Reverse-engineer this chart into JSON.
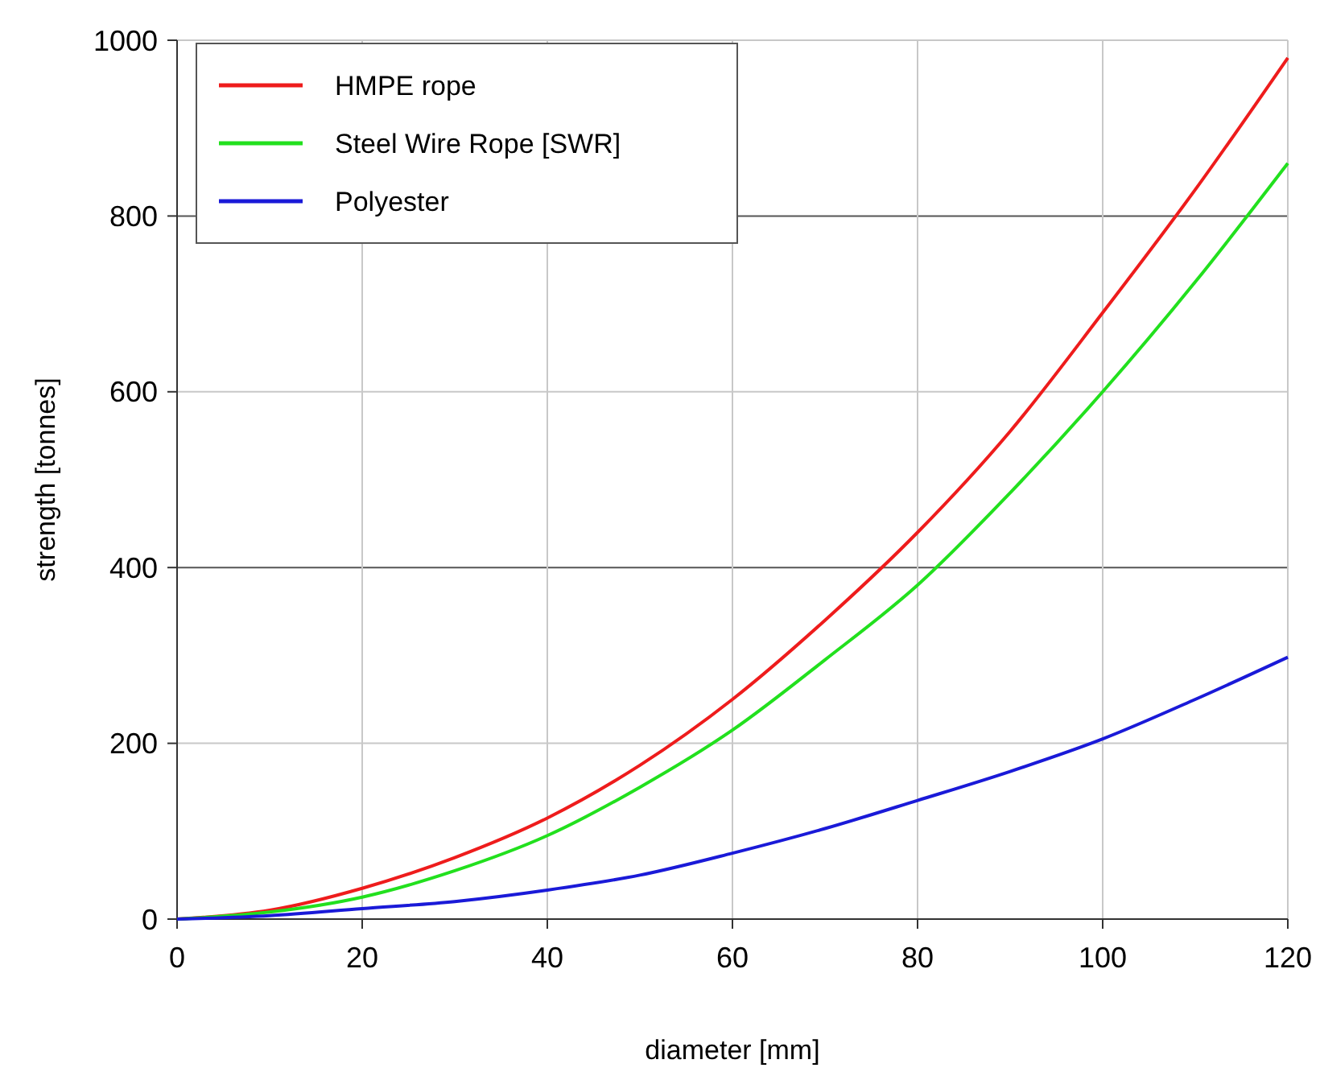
{
  "chart_data": {
    "type": "line",
    "xlabel": "diameter [mm]",
    "ylabel": "strength [tonnes]",
    "x": [
      0,
      10,
      20,
      30,
      40,
      50,
      60,
      70,
      80,
      90,
      100,
      110,
      120
    ],
    "series": [
      {
        "name": "HMPE rope",
        "color": "#ee1c1c",
        "values": [
          0,
          10,
          35,
          70,
          115,
          175,
          250,
          340,
          440,
          555,
          690,
          830,
          980
        ]
      },
      {
        "name": "Steel Wire Rope [SWR]",
        "color": "#22e01e",
        "values": [
          0,
          8,
          25,
          55,
          95,
          150,
          215,
          295,
          380,
          485,
          600,
          725,
          860
        ]
      },
      {
        "name": "Polyester",
        "color": "#1a1ad8",
        "values": [
          0,
          4,
          12,
          20,
          33,
          50,
          75,
          103,
          135,
          168,
          205,
          250,
          298
        ]
      }
    ],
    "xlim": [
      0,
      120
    ],
    "xticks": [
      0,
      20,
      40,
      60,
      80,
      100,
      120
    ],
    "ylim": [
      0,
      1000
    ],
    "yticks": [
      0,
      200,
      400,
      600,
      800,
      1000
    ],
    "grid": true,
    "legend": "top left",
    "marker": "none",
    "line_style": "solid"
  }
}
